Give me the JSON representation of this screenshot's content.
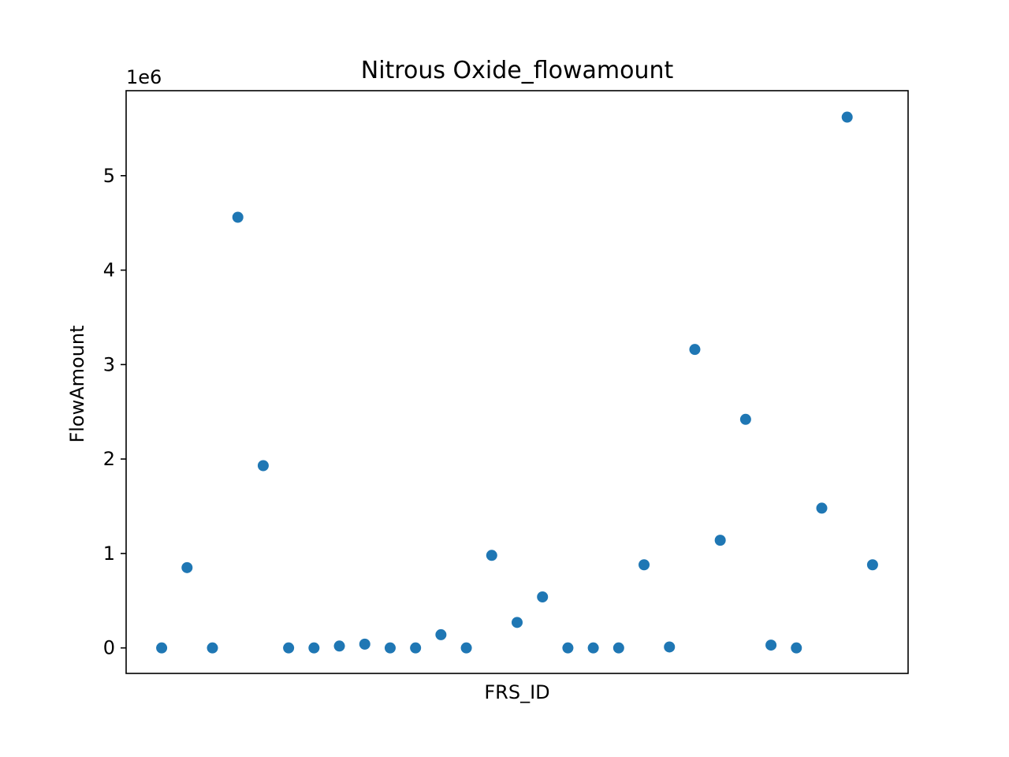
{
  "chart_data": {
    "type": "scatter",
    "title": "Nitrous Oxide_flowamount",
    "xlabel": "FRS_ID",
    "ylabel": "FlowAmount",
    "y_offset_label": "1e6",
    "ylim": [
      -0.27,
      5.9
    ],
    "xlim": [
      -1.4,
      29.4
    ],
    "yticks": [
      0,
      1,
      2,
      3,
      4,
      5
    ],
    "x_tick_labels_shown": false,
    "grid": false,
    "legend": "none",
    "series": [
      {
        "color": "#1f77b4",
        "x": [
          0,
          1,
          2,
          3,
          4,
          5,
          6,
          7,
          8,
          9,
          10,
          11,
          12,
          13,
          14,
          15,
          16,
          17,
          18,
          19,
          20,
          21,
          22,
          23,
          24,
          25,
          26,
          27,
          28
        ],
        "y": [
          0.0,
          0.85,
          0.0,
          4.56,
          1.93,
          0.0,
          0.0,
          0.02,
          0.04,
          0.0,
          0.0,
          0.14,
          0.0,
          0.98,
          0.27,
          0.54,
          0.0,
          0.0,
          0.0,
          0.88,
          0.01,
          3.16,
          1.14,
          2.42,
          0.03,
          0.0,
          1.48,
          5.62,
          0.88
        ]
      }
    ]
  }
}
